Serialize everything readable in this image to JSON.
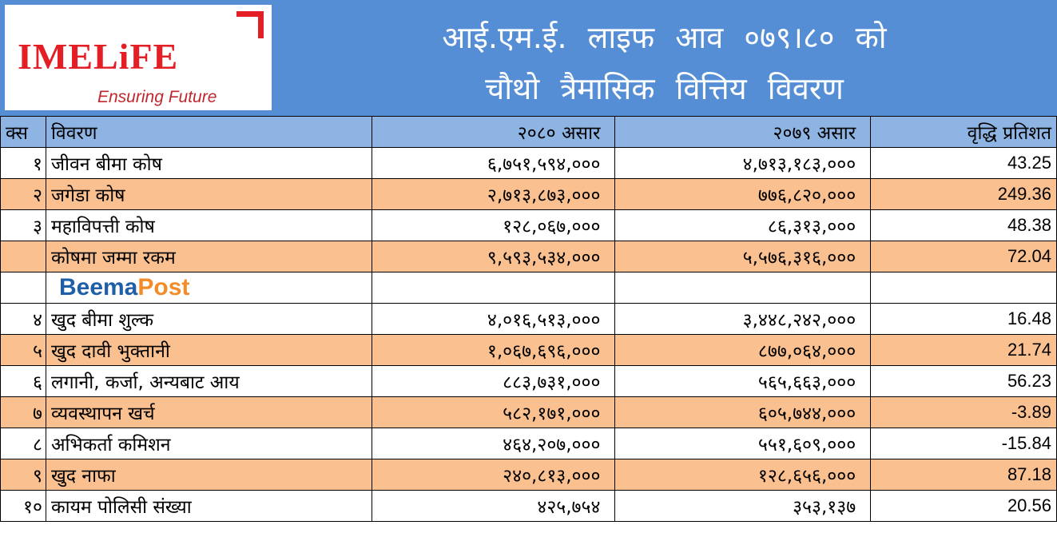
{
  "logo": {
    "brand": "IMELiFE",
    "tagline": "Ensuring Future"
  },
  "title": {
    "line1": "आई.एम.ई. लाइफ आव ०७९।८० को",
    "line2": "चौथो त्रैमासिक वित्तिय विवरण"
  },
  "headers": [
    "क्स",
    "विवरण",
    "२०८० असार",
    "२०७९ असार",
    "वृद्धि प्रतिशत"
  ],
  "watermark": {
    "part1": "Beema",
    "part2": "Post"
  },
  "rows": [
    {
      "sn": "१",
      "label": "जीवन बीमा कोष",
      "cur": "६,७५१,५९४,०००",
      "prev": "४,७१३,१८३,०००",
      "growth": "43.25"
    },
    {
      "sn": "२",
      "label": "जगेडा कोष",
      "cur": "२,७१३,८७३,०००",
      "prev": "७७६,८२०,०००",
      "growth": "249.36"
    },
    {
      "sn": "३",
      "label": "महाविपत्ती कोष",
      "cur": "१२८,०६७,०००",
      "prev": "८६,३१३,०००",
      "growth": "48.38"
    },
    {
      "sn": "",
      "label": "कोषमा जम्मा रकम",
      "cur": "९,५९३,५३४,०००",
      "prev": "५,५७६,३१६,०००",
      "growth": "72.04"
    },
    {
      "sn": "४",
      "label": "खुद बीमा शुल्क",
      "cur": "४,०१६,५१३,०००",
      "prev": "३,४४८,२४२,०००",
      "growth": "16.48"
    },
    {
      "sn": "५",
      "label": "खुद दावी भुक्तानी",
      "cur": "१,०६७,६९६,०००",
      "prev": "८७७,०६४,०००",
      "growth": "21.74"
    },
    {
      "sn": "६",
      "label": "लगानी, कर्जा, अन्यबाट आय",
      "cur": "८८३,७३१,०००",
      "prev": "५६५,६६३,०००",
      "growth": "56.23"
    },
    {
      "sn": "७",
      "label": "व्यवस्थापन खर्च",
      "cur": "५८२,१७१,०००",
      "prev": "६०५,७४४,०००",
      "growth": "-3.89"
    },
    {
      "sn": "८",
      "label": "अभिकर्ता कमिशन",
      "cur": "४६४,२०७,०००",
      "prev": "५५१,६०९,०००",
      "growth": "-15.84"
    },
    {
      "sn": "९",
      "label": "खुद नाफा",
      "cur": "२४०,८१३,०००",
      "prev": "१२८,६५६,०००",
      "growth": "87.18"
    },
    {
      "sn": "१०",
      "label": "कायम पोलिसी संख्या",
      "cur": "४२५,७५४",
      "prev": "३५३,१३७",
      "growth": "20.56"
    }
  ]
}
